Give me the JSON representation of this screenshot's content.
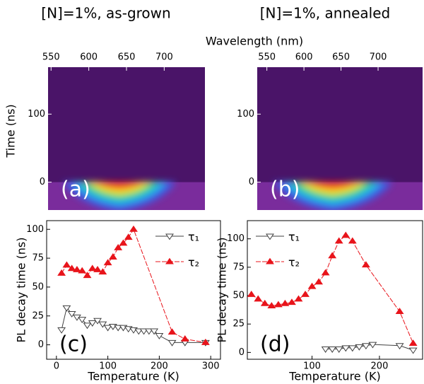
{
  "chart_data": [
    {
      "type": "image",
      "title": "[N]=1%, as-grown",
      "x_label": "Wavelength (nm)",
      "y_label": "Time (ns)",
      "panel_label": "(a)",
      "xlim": [
        546,
        754
      ],
      "xticks": [
        550,
        600,
        650,
        700
      ],
      "ylim": [
        -41,
        169
      ],
      "yticks": [
        0,
        100
      ]
    },
    {
      "type": "image",
      "title": "[N]=1%, annealed",
      "panel_label": "(b)",
      "xlim": [
        537,
        760
      ],
      "xticks": [
        550,
        600,
        650,
        700
      ],
      "ylim": [
        -41,
        169
      ],
      "yticks": [
        0,
        100
      ]
    },
    {
      "type": "line",
      "x_label": "Temperature (K)",
      "y_label": "PL decay time (ns)",
      "panel_label": "(c)",
      "legend": "upper right",
      "xlim": [
        -19,
        319
      ],
      "xticks": [
        0,
        100,
        200,
        300
      ],
      "ylim": [
        -12.5,
        107.5
      ],
      "yticks": [
        0,
        25,
        50,
        75,
        100
      ],
      "series": [
        {
          "name": "τ₁",
          "color": "#404040",
          "marker": "open-down-triangle",
          "x": [
            10,
            20,
            30,
            40,
            50,
            60,
            70,
            80,
            90,
            100,
            110,
            120,
            130,
            140,
            150,
            160,
            170,
            180,
            190,
            200,
            225,
            250,
            290
          ],
          "values": [
            13,
            32,
            27,
            24,
            22,
            17,
            19,
            21,
            18,
            15,
            16,
            15,
            15,
            14,
            13,
            12,
            12,
            12,
            12,
            8,
            2,
            2,
            2
          ]
        },
        {
          "name": "τ₂",
          "color": "#e8141b",
          "marker": "filled-up-triangle",
          "x": [
            10,
            20,
            30,
            40,
            50,
            60,
            70,
            80,
            90,
            100,
            110,
            120,
            130,
            140,
            150,
            225,
            250,
            290
          ],
          "values": [
            62,
            69,
            66,
            65,
            64,
            60,
            66,
            65,
            63,
            71,
            76,
            84,
            88,
            93,
            100,
            11,
            5,
            2
          ]
        }
      ]
    },
    {
      "type": "line",
      "x_label": "Temperature (K)",
      "y_label": "PL decay time (ns)",
      "panel_label": "(d)",
      "legend": "upper left",
      "xlim": [
        4,
        264
      ],
      "xticks": [
        100,
        200
      ],
      "ylim": [
        -6,
        116
      ],
      "yticks": [
        0,
        25,
        50,
        75,
        100
      ],
      "series": [
        {
          "name": "τ₁",
          "color": "#404040",
          "marker": "open-down-triangle",
          "x": [
            120,
            130,
            140,
            150,
            160,
            170,
            180,
            190,
            230,
            250
          ],
          "values": [
            3,
            3,
            3,
            4,
            4,
            5,
            6,
            7,
            6,
            2
          ]
        },
        {
          "name": "τ₂",
          "color": "#e8141b",
          "marker": "filled-up-triangle",
          "x": [
            10,
            20,
            30,
            40,
            50,
            60,
            70,
            80,
            90,
            100,
            110,
            120,
            130,
            140,
            150,
            160,
            180,
            230,
            250
          ],
          "values": [
            51,
            47,
            43,
            41,
            42,
            43,
            44,
            47,
            51,
            58,
            62,
            70,
            85,
            98,
            103,
            98,
            77,
            36,
            8
          ]
        }
      ]
    }
  ]
}
